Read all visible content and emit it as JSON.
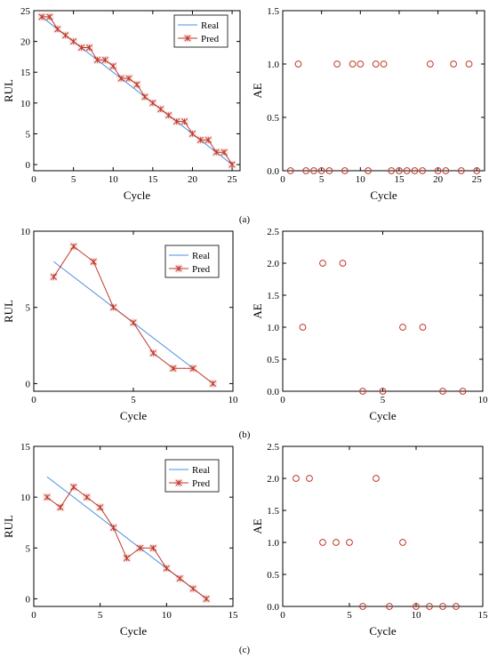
{
  "colors": {
    "real": "#4a90e2",
    "pred": "#c0392b",
    "ae": "#c0392b"
  },
  "panel_labels": [
    "(a)",
    "(b)",
    "(c)"
  ],
  "chart_data": [
    {
      "type": "line",
      "panel": "(a)",
      "xlabel": "Cycle",
      "ylabel": "RUL",
      "xlim": [
        0,
        26
      ],
      "ylim": [
        -1,
        25
      ],
      "xticks": [
        0,
        5,
        10,
        15,
        20,
        25
      ],
      "yticks": [
        0,
        5,
        10,
        15,
        20,
        25
      ],
      "legend": "top-right",
      "series": [
        {
          "name": "Real",
          "x": [
            1,
            25
          ],
          "y": [
            24,
            0
          ]
        },
        {
          "name": "Pred",
          "x": [
            1,
            2,
            3,
            4,
            5,
            6,
            7,
            8,
            9,
            10,
            11,
            12,
            13,
            14,
            15,
            16,
            17,
            18,
            19,
            20,
            21,
            22,
            23,
            24,
            25
          ],
          "y": [
            24,
            24,
            22,
            21,
            20,
            19,
            19,
            17,
            17,
            16,
            14,
            14,
            13,
            11,
            10,
            9,
            8,
            7,
            7,
            5,
            4,
            4,
            2,
            2,
            0
          ]
        }
      ]
    },
    {
      "type": "scatter",
      "panel": "(a)",
      "xlabel": "Cycle",
      "ylabel": "AE",
      "xlim": [
        0,
        26
      ],
      "ylim": [
        0,
        1.5
      ],
      "xticks": [
        0,
        5,
        10,
        15,
        20,
        25
      ],
      "yticks": [
        0,
        0.5,
        1.0,
        1.5
      ],
      "ytick_labels": [
        "0.0",
        "0.5",
        "1.0",
        "1.5"
      ],
      "series": [
        {
          "x": [
            1,
            2,
            3,
            4,
            5,
            6,
            7,
            8,
            9,
            10,
            11,
            12,
            13,
            14,
            15,
            16,
            17,
            18,
            19,
            20,
            21,
            22,
            23,
            24,
            25
          ],
          "y": [
            0,
            1,
            0,
            0,
            0,
            0,
            1,
            0,
            1,
            1,
            0,
            1,
            1,
            0,
            0,
            0,
            0,
            0,
            1,
            0,
            0,
            1,
            0,
            1,
            0
          ]
        }
      ]
    },
    {
      "type": "line",
      "panel": "(b)",
      "xlabel": "Cycle",
      "ylabel": "RUL",
      "xlim": [
        0,
        10
      ],
      "ylim": [
        -0.5,
        10
      ],
      "xticks": [
        0,
        5,
        10
      ],
      "yticks": [
        0,
        5,
        10
      ],
      "legend": "top-right",
      "series": [
        {
          "name": "Real",
          "x": [
            1,
            8
          ],
          "y": [
            8,
            1
          ]
        },
        {
          "name": "Pred",
          "x": [
            1,
            2,
            3,
            4,
            5,
            6,
            7,
            8,
            9
          ],
          "y": [
            7,
            9,
            8,
            5,
            4,
            2,
            1,
            1,
            0
          ]
        }
      ]
    },
    {
      "type": "scatter",
      "panel": "(b)",
      "xlabel": "Cycle",
      "ylabel": "AE",
      "xlim": [
        0,
        10
      ],
      "ylim": [
        0,
        2.5
      ],
      "xticks": [
        0,
        5,
        10
      ],
      "yticks": [
        0,
        0.5,
        1.0,
        1.5,
        2.0,
        2.5
      ],
      "ytick_labels": [
        "0.0",
        "0.5",
        "1.0",
        "1.5",
        "2.0",
        "2.5"
      ],
      "series": [
        {
          "x": [
            1,
            2,
            3,
            4,
            5,
            6,
            7,
            8,
            9
          ],
          "y": [
            1,
            2,
            2,
            0,
            0,
            1,
            1,
            0,
            0
          ]
        }
      ]
    },
    {
      "type": "line",
      "panel": "(c)",
      "xlabel": "Cycle",
      "ylabel": "RUL",
      "xlim": [
        0,
        15
      ],
      "ylim": [
        -0.75,
        15
      ],
      "xticks": [
        0,
        5,
        10,
        15
      ],
      "yticks": [
        0,
        5,
        10,
        15
      ],
      "legend": "top-right",
      "series": [
        {
          "name": "Real",
          "x": [
            1,
            13
          ],
          "y": [
            12,
            0
          ]
        },
        {
          "name": "Pred",
          "x": [
            1,
            2,
            3,
            4,
            5,
            6,
            7,
            8,
            9,
            10,
            11,
            12,
            13
          ],
          "y": [
            10,
            9,
            11,
            10,
            9,
            7,
            4,
            5,
            5,
            3,
            2,
            1,
            0
          ]
        }
      ]
    },
    {
      "type": "scatter",
      "panel": "(c)",
      "xlabel": "Cycle",
      "ylabel": "AE",
      "xlim": [
        0,
        15
      ],
      "ylim": [
        0,
        2.5
      ],
      "xticks": [
        0,
        5,
        10,
        15
      ],
      "yticks": [
        0,
        0.5,
        1.0,
        1.5,
        2.0,
        2.5
      ],
      "ytick_labels": [
        "0.0",
        "0.5",
        "1.0",
        "1.5",
        "2.0",
        "2.5"
      ],
      "series": [
        {
          "x": [
            1,
            2,
            3,
            4,
            5,
            6,
            7,
            8,
            9,
            10,
            11,
            12,
            13
          ],
          "y": [
            2,
            2,
            1,
            1,
            1,
            0,
            2,
            0,
            1,
            0,
            0,
            0,
            0
          ]
        }
      ]
    }
  ]
}
